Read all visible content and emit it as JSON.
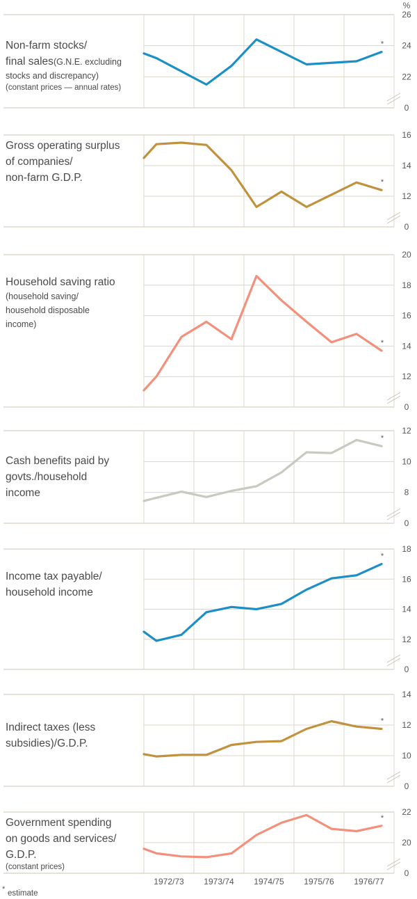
{
  "chart_data": [
    {
      "type": "line",
      "label_lines": [
        [
          {
            "text": "Non-farm stocks/",
            "style": "main"
          }
        ],
        [
          {
            "text": "final sales",
            "style": "main"
          },
          {
            "text": "(G.N.E. excluding",
            "style": "note"
          }
        ],
        [
          {
            "text": "stocks and discrepancy)",
            "style": "note"
          }
        ],
        [
          {
            "text": "(constant prices — annual rates)",
            "style": "small"
          }
        ]
      ],
      "unit": "%",
      "yticks": [
        22,
        24,
        26
      ],
      "bottom_tick": "0",
      "axis_break": true,
      "ylim": [
        20,
        26
      ],
      "color": "#1b8fc6",
      "points": [
        [
          1972.0,
          23.5
        ],
        [
          1972.25,
          23.2
        ],
        [
          1973.25,
          21.5
        ],
        [
          1973.75,
          22.7
        ],
        [
          1974.25,
          24.4
        ],
        [
          1975.25,
          22.8
        ],
        [
          1976.25,
          23.0
        ],
        [
          1976.75,
          23.6
        ]
      ],
      "estimate_marker": "*"
    },
    {
      "type": "line",
      "label_lines": [
        [
          {
            "text": "Gross operating surplus",
            "style": "main"
          }
        ],
        [
          {
            "text": "of companies/",
            "style": "main"
          }
        ],
        [
          {
            "text": "non-farm G.D.P.",
            "style": "main"
          }
        ]
      ],
      "yticks": [
        12,
        14,
        16
      ],
      "bottom_tick": "0",
      "axis_break": true,
      "ylim": [
        10,
        16
      ],
      "color": "#c0923e",
      "points": [
        [
          1972.0,
          14.5
        ],
        [
          1972.25,
          15.4
        ],
        [
          1972.75,
          15.5
        ],
        [
          1973.25,
          15.35
        ],
        [
          1973.75,
          13.7
        ],
        [
          1974.25,
          11.3
        ],
        [
          1974.75,
          12.3
        ],
        [
          1975.25,
          11.3
        ],
        [
          1975.75,
          12.1
        ],
        [
          1976.25,
          12.9
        ],
        [
          1976.75,
          12.4
        ]
      ],
      "estimate_marker": "*"
    },
    {
      "type": "line",
      "label_lines": [
        [
          {
            "text": "Household saving ratio",
            "style": "main"
          }
        ],
        [
          {
            "text": "(household saving/",
            "style": "note"
          }
        ],
        [
          {
            "text": "household disposable",
            "style": "note"
          }
        ],
        [
          {
            "text": "income)",
            "style": "note"
          }
        ]
      ],
      "yticks": [
        12,
        14,
        16,
        18,
        20
      ],
      "bottom_tick": "0",
      "axis_break": true,
      "ylim": [
        10,
        20
      ],
      "color": "#f2907c",
      "points": [
        [
          1972.0,
          11.1
        ],
        [
          1972.25,
          12.0
        ],
        [
          1972.75,
          14.6
        ],
        [
          1973.25,
          15.6
        ],
        [
          1973.75,
          14.45
        ],
        [
          1974.25,
          18.6
        ],
        [
          1974.75,
          17.0
        ],
        [
          1975.25,
          15.6
        ],
        [
          1975.75,
          14.25
        ],
        [
          1976.25,
          14.8
        ],
        [
          1976.75,
          13.7
        ]
      ],
      "estimate_marker": "*"
    },
    {
      "type": "line",
      "label_lines": [
        [
          {
            "text": "Cash benefits paid by",
            "style": "main"
          }
        ],
        [
          {
            "text": "govts./household",
            "style": "main"
          }
        ],
        [
          {
            "text": "income",
            "style": "main"
          }
        ]
      ],
      "yticks": [
        8,
        10,
        12
      ],
      "bottom_tick": "0",
      "axis_break": true,
      "ylim": [
        6,
        12
      ],
      "color": "#c9c9bf",
      "points": [
        [
          1972.0,
          7.45
        ],
        [
          1972.25,
          7.65
        ],
        [
          1972.75,
          8.05
        ],
        [
          1973.25,
          7.7
        ],
        [
          1973.75,
          8.1
        ],
        [
          1974.25,
          8.4
        ],
        [
          1974.75,
          9.3
        ],
        [
          1975.25,
          10.6
        ],
        [
          1975.75,
          10.55
        ],
        [
          1976.25,
          11.4
        ],
        [
          1976.75,
          11.0
        ]
      ],
      "estimate_marker": "*"
    },
    {
      "type": "line",
      "label_lines": [
        [
          {
            "text": "Income tax payable/",
            "style": "main"
          }
        ],
        [
          {
            "text": "household income",
            "style": "main"
          }
        ]
      ],
      "yticks": [
        12,
        14,
        16,
        18
      ],
      "bottom_tick": "0",
      "axis_break": true,
      "ylim": [
        10,
        18
      ],
      "color": "#1b8fc6",
      "points": [
        [
          1972.0,
          12.5
        ],
        [
          1972.25,
          11.9
        ],
        [
          1972.75,
          12.3
        ],
        [
          1973.25,
          13.8
        ],
        [
          1973.75,
          14.15
        ],
        [
          1974.25,
          14.0
        ],
        [
          1974.75,
          14.35
        ],
        [
          1975.25,
          15.3
        ],
        [
          1975.75,
          16.05
        ],
        [
          1976.25,
          16.25
        ],
        [
          1976.75,
          17.0
        ]
      ],
      "estimate_marker": "*"
    },
    {
      "type": "line",
      "label_lines": [
        [
          {
            "text": "Indirect taxes (less",
            "style": "main"
          }
        ],
        [
          {
            "text": "subsidies)/G.D.P.",
            "style": "main"
          }
        ]
      ],
      "yticks": [
        10,
        12,
        14
      ],
      "bottom_tick": "0",
      "axis_break": true,
      "ylim": [
        8,
        14
      ],
      "color": "#c0923e",
      "points": [
        [
          1972.0,
          10.1
        ],
        [
          1972.25,
          9.95
        ],
        [
          1972.75,
          10.05
        ],
        [
          1973.25,
          10.05
        ],
        [
          1973.75,
          10.7
        ],
        [
          1974.25,
          10.9
        ],
        [
          1974.75,
          10.95
        ],
        [
          1975.25,
          11.75
        ],
        [
          1975.75,
          12.25
        ],
        [
          1976.25,
          11.9
        ],
        [
          1976.75,
          11.75
        ]
      ],
      "estimate_marker": "*"
    },
    {
      "type": "line",
      "label_lines": [
        [
          {
            "text": "Government spending",
            "style": "main"
          }
        ],
        [
          {
            "text": "on goods and services/",
            "style": "main"
          }
        ],
        [
          {
            "text": "G.D.P.",
            "style": "main"
          }
        ],
        [
          {
            "text": "(constant prices)",
            "style": "small"
          }
        ]
      ],
      "yticks": [
        20,
        22
      ],
      "bottom_tick": "0",
      "axis_break": true,
      "ylim": [
        18,
        22
      ],
      "color": "#f2907c",
      "points": [
        [
          1972.0,
          19.6
        ],
        [
          1972.25,
          19.3
        ],
        [
          1972.75,
          19.1
        ],
        [
          1973.25,
          19.05
        ],
        [
          1973.75,
          19.3
        ],
        [
          1974.25,
          20.5
        ],
        [
          1974.75,
          21.3
        ],
        [
          1975.25,
          21.8
        ],
        [
          1975.75,
          20.9
        ],
        [
          1976.25,
          20.75
        ],
        [
          1976.75,
          21.1
        ]
      ],
      "estimate_marker": "*"
    }
  ],
  "x_axis": {
    "categories": [
      "1972/73",
      "1973/74",
      "1974/75",
      "1975/76",
      "1976/77"
    ],
    "xlim": [
      1972.0,
      1977.0
    ]
  },
  "grid": true,
  "footnote": {
    "marker": "*",
    "text": "estimate"
  }
}
